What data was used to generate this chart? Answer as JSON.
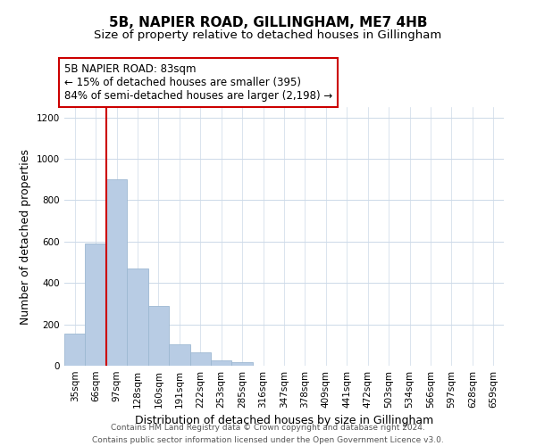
{
  "title": "5B, NAPIER ROAD, GILLINGHAM, ME7 4HB",
  "subtitle": "Size of property relative to detached houses in Gillingham",
  "xlabel": "Distribution of detached houses by size in Gillingham",
  "ylabel": "Number of detached properties",
  "bar_labels": [
    "35sqm",
    "66sqm",
    "97sqm",
    "128sqm",
    "160sqm",
    "191sqm",
    "222sqm",
    "253sqm",
    "285sqm",
    "316sqm",
    "347sqm",
    "378sqm",
    "409sqm",
    "441sqm",
    "472sqm",
    "503sqm",
    "534sqm",
    "566sqm",
    "597sqm",
    "628sqm",
    "659sqm"
  ],
  "bar_values": [
    155,
    590,
    900,
    470,
    290,
    105,
    65,
    28,
    18,
    0,
    0,
    0,
    0,
    0,
    0,
    0,
    0,
    0,
    0,
    0,
    0
  ],
  "bar_color": "#b8cce4",
  "bar_edge_color": "#9db8d2",
  "vline_x_idx": 1,
  "vline_color": "#cc0000",
  "annotation_text_line1": "5B NAPIER ROAD: 83sqm",
  "annotation_text_line2": "← 15% of detached houses are smaller (395)",
  "annotation_text_line3": "84% of semi-detached houses are larger (2,198) →",
  "annotation_box_color": "#ffffff",
  "annotation_border_color": "#cc0000",
  "ylim": [
    0,
    1250
  ],
  "yticks": [
    0,
    200,
    400,
    600,
    800,
    1000,
    1200
  ],
  "footer_line1": "Contains HM Land Registry data © Crown copyright and database right 2024.",
  "footer_line2": "Contains public sector information licensed under the Open Government Licence v3.0.",
  "background_color": "#ffffff",
  "grid_color": "#ccd9e8",
  "title_fontsize": 11,
  "subtitle_fontsize": 9.5,
  "axis_label_fontsize": 9,
  "tick_fontsize": 7.5,
  "annotation_fontsize": 8.5,
  "footer_fontsize": 6.5
}
